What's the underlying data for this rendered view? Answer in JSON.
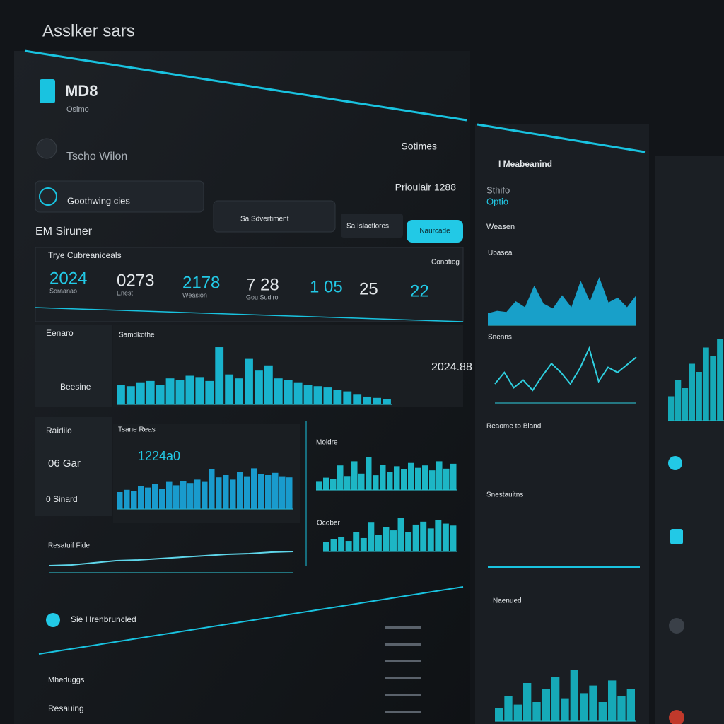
{
  "app_title": "Asslker sars",
  "brand": {
    "name": "MD8",
    "sub": "Osimo"
  },
  "user": "Tscho Wilon",
  "settings": "Sotimes",
  "search": [
    "Goothwing cies",
    "Sa Sdvertiment",
    "Sa Islactlores"
  ],
  "button": "Naurcade",
  "period": "Prioulair 1288",
  "section": "EM Siruner",
  "kpi_title": "Trye Cubreaniceals",
  "kpi_right": "Conatiog",
  "kpis": [
    {
      "figure": "2024",
      "label": "Soraanao"
    },
    {
      "figure": "0273",
      "label": "Enest"
    },
    {
      "figure": "2178",
      "label": "Weasion"
    },
    {
      "figure": "7 28",
      "label": "Gou Sudiro"
    },
    {
      "figure": "1 05"
    },
    {
      "figure": "25"
    },
    {
      "figure": "22"
    }
  ],
  "side_cards": [
    "Eenaro",
    "Beesine",
    "Raidilo",
    "06 Gar",
    "0 Sinard"
  ],
  "charts": [
    {
      "type": "bar",
      "title": "Samdkothe",
      "note": "2024.88",
      "color": "#19c3e0",
      "values": [
        30,
        28,
        34,
        36,
        30,
        40,
        38,
        44,
        42,
        36,
        88,
        46,
        40,
        70,
        52,
        60,
        40,
        38,
        34,
        30,
        28,
        26,
        22,
        20,
        16,
        12,
        10,
        8
      ]
    },
    {
      "type": "bar",
      "title": "Tsane Reas",
      "note": "1224a0",
      "color": "#1aa8e0",
      "values": [
        30,
        34,
        32,
        40,
        38,
        44,
        36,
        48,
        42,
        50,
        46,
        52,
        48,
        70,
        56,
        60,
        52,
        66,
        58,
        72,
        62,
        60,
        64,
        58,
        56
      ]
    },
    {
      "type": "bar",
      "title": "Moidre",
      "color": "#1fc8d8",
      "values": [
        20,
        30,
        26,
        60,
        34,
        70,
        40,
        80,
        36,
        62,
        44,
        58,
        50,
        66,
        54,
        60,
        48,
        70,
        52,
        64
      ]
    },
    {
      "type": "bar",
      "title": "Ocober",
      "color": "#1fc8d8",
      "values": [
        20,
        26,
        30,
        22,
        40,
        28,
        60,
        34,
        50,
        44,
        70,
        40,
        56,
        62,
        48,
        66,
        58,
        54
      ]
    },
    {
      "type": "line",
      "title": "Resatuif Fide",
      "color": "#5fd6ea",
      "values": [
        20,
        22,
        28,
        34,
        36,
        40,
        44,
        48,
        52,
        54,
        58,
        60
      ]
    },
    {
      "type": "area",
      "title": "Ubasea",
      "color": "#19b7e6",
      "values": [
        20,
        24,
        22,
        40,
        30,
        66,
        36,
        28,
        50,
        30,
        74,
        40,
        80,
        38,
        46,
        30,
        50
      ]
    },
    {
      "type": "line",
      "title": "Snenns",
      "color": "#2fd0e0",
      "values": [
        30,
        48,
        24,
        36,
        20,
        42,
        62,
        48,
        30,
        54,
        86,
        34,
        56,
        48,
        60,
        72
      ]
    },
    {
      "type": "bar",
      "title": "Naenued",
      "color": "#16b8c8",
      "values": [
        20,
        40,
        26,
        60,
        30,
        50,
        70,
        36,
        80,
        44,
        56,
        30,
        64,
        40,
        50
      ]
    },
    {
      "type": "bar",
      "color": "#16b8c8",
      "values": [
        30,
        50,
        40,
        70,
        60,
        90,
        80,
        100
      ]
    }
  ],
  "list_title": "Sie Hrenbruncled",
  "footer": [
    "Mheduggs",
    "Resauing"
  ],
  "side_panel": {
    "title": "I Meabeanind",
    "sub": [
      "Sthifo",
      "Optio"
    ],
    "labels": [
      "Weasen",
      "Reaome to Bland",
      "Snestauitns"
    ]
  }
}
